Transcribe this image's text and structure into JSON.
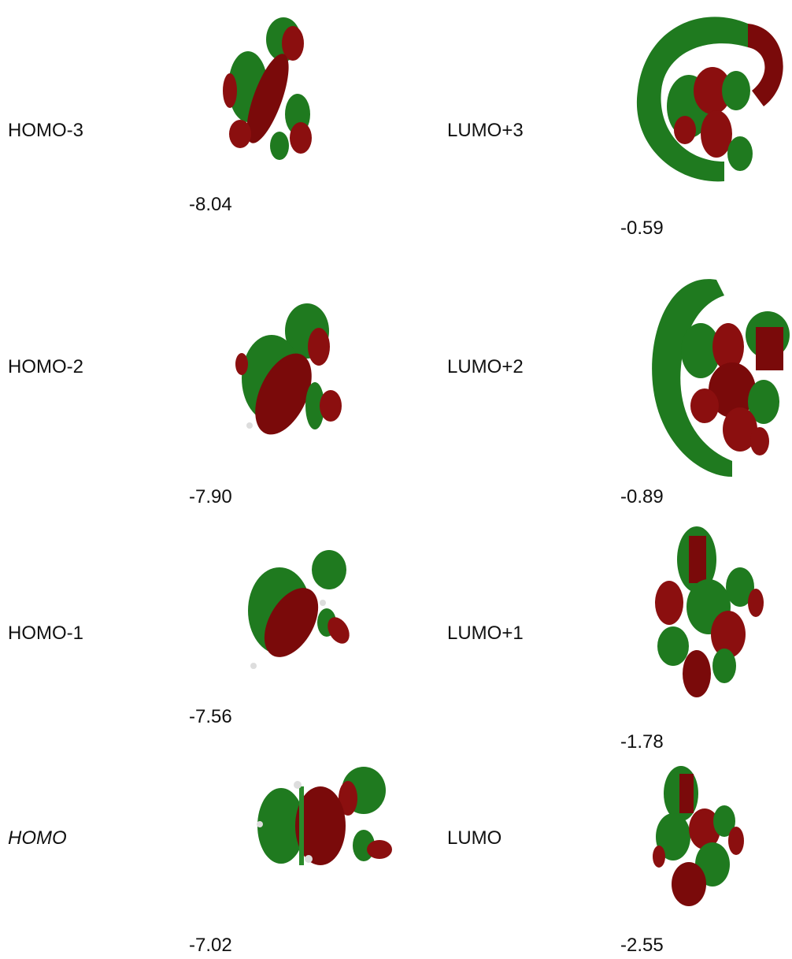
{
  "orbitals": [
    {
      "label": "HOMO-3",
      "energy": "-8.04"
    },
    {
      "label": "HOMO-2",
      "energy": "-7.90"
    },
    {
      "label": "HOMO-1",
      "energy": "-7.56"
    },
    {
      "label": "HOMO",
      "energy": "-7.02"
    },
    {
      "label": "LUMO+3",
      "energy": "-0.59"
    },
    {
      "label": "LUMO+2",
      "energy": "-0.89"
    },
    {
      "label": "LUMO+1",
      "energy": "-1.78"
    },
    {
      "label": "LUMO",
      "energy": "-2.55"
    }
  ]
}
